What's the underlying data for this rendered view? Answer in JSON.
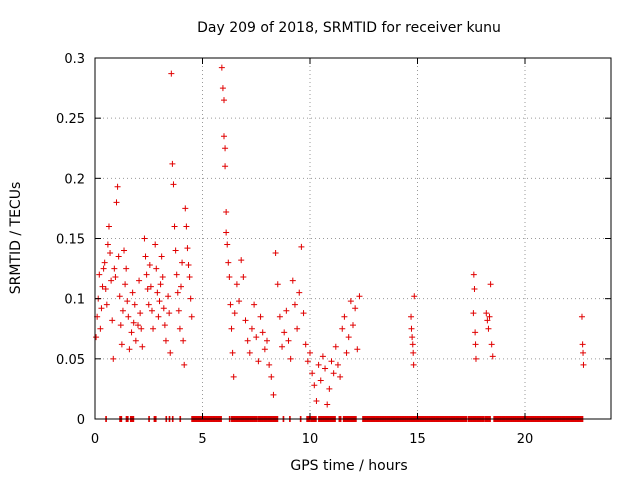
{
  "chart_data": {
    "type": "scatter",
    "title": "Day 209 of 2018, SRMTID for receiver kunu",
    "xlabel": "GPS time / hours",
    "ylabel": "SRMTID / TECUs",
    "xlim": [
      0,
      24
    ],
    "ylim": [
      0,
      0.3
    ],
    "xticks": [
      0,
      5,
      10,
      15,
      20
    ],
    "yticks": [
      0,
      0.05,
      0.1,
      0.15,
      0.2,
      0.25,
      0.3
    ],
    "xtick_labels": [
      "0",
      "5",
      "10",
      "15",
      "20"
    ],
    "ytick_labels": [
      "0",
      "0.05",
      "0.1",
      "0.15",
      "0.2",
      "0.25",
      "0.3"
    ],
    "grid": true,
    "marker": "+",
    "color": "#e00000",
    "series": [
      {
        "name": "SRMTID",
        "points": [
          [
            0.05,
            0.068
          ],
          [
            0.1,
            0.085
          ],
          [
            0.15,
            0.1
          ],
          [
            0.2,
            0.12
          ],
          [
            0.25,
            0.075
          ],
          [
            0.3,
            0.092
          ],
          [
            0.35,
            0.11
          ],
          [
            0.4,
            0.125
          ],
          [
            0.45,
            0.13
          ],
          [
            0.5,
            0.108
          ],
          [
            0.55,
            0.095
          ],
          [
            0.6,
            0.145
          ],
          [
            0.65,
            0.16
          ],
          [
            0.7,
            0.138
          ],
          [
            0.75,
            0.115
          ],
          [
            0.8,
            0.082
          ],
          [
            0.85,
            0.05
          ],
          [
            0.9,
            0.125
          ],
          [
            0.95,
            0.118
          ],
          [
            1.0,
            0.18
          ],
          [
            1.05,
            0.193
          ],
          [
            1.1,
            0.135
          ],
          [
            1.15,
            0.102
          ],
          [
            1.2,
            0.078
          ],
          [
            1.25,
            0.062
          ],
          [
            1.3,
            0.09
          ],
          [
            1.35,
            0.14
          ],
          [
            1.4,
            0.112
          ],
          [
            1.45,
            0.125
          ],
          [
            1.5,
            0.098
          ],
          [
            1.55,
            0.085
          ],
          [
            1.6,
            0.058
          ],
          [
            1.7,
            0.072
          ],
          [
            1.75,
            0.105
          ],
          [
            1.8,
            0.08
          ],
          [
            1.85,
            0.095
          ],
          [
            1.9,
            0.065
          ],
          [
            2.0,
            0.078
          ],
          [
            2.05,
            0.115
          ],
          [
            2.1,
            0.088
          ],
          [
            2.15,
            0.075
          ],
          [
            2.2,
            0.06
          ],
          [
            2.3,
            0.15
          ],
          [
            2.35,
            0.135
          ],
          [
            2.4,
            0.12
          ],
          [
            2.45,
            0.108
          ],
          [
            2.5,
            0.095
          ],
          [
            2.55,
            0.128
          ],
          [
            2.6,
            0.11
          ],
          [
            2.65,
            0.09
          ],
          [
            2.7,
            0.075
          ],
          [
            2.8,
            0.145
          ],
          [
            2.85,
            0.125
          ],
          [
            2.9,
            0.105
          ],
          [
            2.95,
            0.085
          ],
          [
            3.0,
            0.098
          ],
          [
            3.05,
            0.112
          ],
          [
            3.1,
            0.135
          ],
          [
            3.15,
            0.118
          ],
          [
            3.2,
            0.092
          ],
          [
            3.25,
            0.078
          ],
          [
            3.3,
            0.065
          ],
          [
            3.4,
            0.102
          ],
          [
            3.45,
            0.088
          ],
          [
            3.5,
            0.055
          ],
          [
            3.55,
            0.287
          ],
          [
            3.6,
            0.212
          ],
          [
            3.65,
            0.195
          ],
          [
            3.7,
            0.16
          ],
          [
            3.75,
            0.14
          ],
          [
            3.8,
            0.12
          ],
          [
            3.85,
            0.105
          ],
          [
            3.9,
            0.09
          ],
          [
            3.95,
            0.075
          ],
          [
            4.0,
            0.11
          ],
          [
            4.05,
            0.13
          ],
          [
            4.1,
            0.065
          ],
          [
            4.15,
            0.045
          ],
          [
            4.2,
            0.175
          ],
          [
            4.25,
            0.16
          ],
          [
            4.3,
            0.142
          ],
          [
            4.35,
            0.128
          ],
          [
            4.4,
            0.118
          ],
          [
            4.45,
            0.1
          ],
          [
            4.5,
            0.085
          ],
          [
            5.9,
            0.292
          ],
          [
            5.95,
            0.275
          ],
          [
            6.0,
            0.265
          ],
          [
            6.0,
            0.235
          ],
          [
            6.05,
            0.225
          ],
          [
            6.05,
            0.21
          ],
          [
            6.1,
            0.172
          ],
          [
            6.1,
            0.155
          ],
          [
            6.15,
            0.145
          ],
          [
            6.2,
            0.13
          ],
          [
            6.25,
            0.118
          ],
          [
            6.3,
            0.095
          ],
          [
            6.35,
            0.075
          ],
          [
            6.4,
            0.055
          ],
          [
            6.45,
            0.035
          ],
          [
            6.5,
            0.088
          ],
          [
            6.6,
            0.112
          ],
          [
            6.7,
            0.098
          ],
          [
            6.8,
            0.132
          ],
          [
            6.9,
            0.118
          ],
          [
            7.0,
            0.082
          ],
          [
            7.1,
            0.065
          ],
          [
            7.2,
            0.055
          ],
          [
            7.3,
            0.075
          ],
          [
            7.4,
            0.095
          ],
          [
            7.5,
            0.068
          ],
          [
            7.6,
            0.048
          ],
          [
            7.7,
            0.085
          ],
          [
            7.8,
            0.072
          ],
          [
            7.9,
            0.058
          ],
          [
            8.0,
            0.065
          ],
          [
            8.1,
            0.045
          ],
          [
            8.2,
            0.035
          ],
          [
            8.3,
            0.02
          ],
          [
            8.4,
            0.138
          ],
          [
            8.5,
            0.112
          ],
          [
            8.6,
            0.085
          ],
          [
            8.7,
            0.06
          ],
          [
            8.8,
            0.072
          ],
          [
            8.9,
            0.09
          ],
          [
            9.0,
            0.065
          ],
          [
            9.1,
            0.05
          ],
          [
            9.2,
            0.115
          ],
          [
            9.3,
            0.095
          ],
          [
            9.4,
            0.075
          ],
          [
            9.5,
            0.105
          ],
          [
            9.6,
            0.143
          ],
          [
            9.7,
            0.088
          ],
          [
            9.8,
            0.062
          ],
          [
            9.9,
            0.048
          ],
          [
            10.0,
            0.055
          ],
          [
            10.1,
            0.038
          ],
          [
            10.2,
            0.028
          ],
          [
            10.3,
            0.015
          ],
          [
            10.4,
            0.045
          ],
          [
            10.5,
            0.032
          ],
          [
            10.6,
            0.052
          ],
          [
            10.7,
            0.042
          ],
          [
            10.8,
            0.012
          ],
          [
            10.9,
            0.025
          ],
          [
            11.0,
            0.048
          ],
          [
            11.1,
            0.038
          ],
          [
            11.2,
            0.06
          ],
          [
            11.3,
            0.045
          ],
          [
            11.4,
            0.035
          ],
          [
            11.5,
            0.075
          ],
          [
            11.6,
            0.085
          ],
          [
            11.7,
            0.055
          ],
          [
            11.8,
            0.068
          ],
          [
            11.9,
            0.098
          ],
          [
            12.0,
            0.078
          ],
          [
            12.1,
            0.092
          ],
          [
            12.2,
            0.058
          ],
          [
            12.3,
            0.102
          ],
          [
            14.7,
            0.085
          ],
          [
            14.72,
            0.075
          ],
          [
            14.75,
            0.068
          ],
          [
            14.78,
            0.062
          ],
          [
            14.8,
            0.055
          ],
          [
            14.82,
            0.045
          ],
          [
            14.85,
            0.102
          ],
          [
            17.6,
            0.088
          ],
          [
            17.62,
            0.12
          ],
          [
            17.65,
            0.108
          ],
          [
            17.68,
            0.072
          ],
          [
            17.7,
            0.062
          ],
          [
            17.72,
            0.05
          ],
          [
            18.2,
            0.088
          ],
          [
            18.25,
            0.082
          ],
          [
            18.3,
            0.075
          ],
          [
            18.35,
            0.085
          ],
          [
            18.4,
            0.112
          ],
          [
            18.45,
            0.062
          ],
          [
            18.5,
            0.052
          ],
          [
            22.65,
            0.085
          ],
          [
            22.68,
            0.062
          ],
          [
            22.7,
            0.055
          ],
          [
            22.72,
            0.045
          ]
        ]
      }
    ],
    "zero_segments": [
      [
        0.5,
        0.55
      ],
      [
        1.15,
        1.25
      ],
      [
        1.45,
        1.55
      ],
      [
        1.65,
        1.8
      ],
      [
        2.5,
        2.55
      ],
      [
        2.75,
        2.85
      ],
      [
        3.3,
        3.35
      ],
      [
        3.45,
        3.5
      ],
      [
        3.6,
        3.65
      ],
      [
        3.95,
        4.0
      ],
      [
        4.5,
        5.9
      ],
      [
        6.25,
        6.3
      ],
      [
        6.35,
        7.55
      ],
      [
        7.6,
        8.5
      ],
      [
        8.75,
        8.8
      ],
      [
        9.05,
        9.1
      ],
      [
        9.55,
        9.6
      ],
      [
        9.85,
        10.0
      ],
      [
        10.05,
        10.3
      ],
      [
        10.4,
        11.2
      ],
      [
        11.35,
        11.45
      ],
      [
        11.55,
        12.15
      ],
      [
        12.45,
        17.3
      ],
      [
        17.35,
        18.1
      ],
      [
        18.15,
        18.4
      ],
      [
        18.55,
        22.7
      ]
    ]
  }
}
